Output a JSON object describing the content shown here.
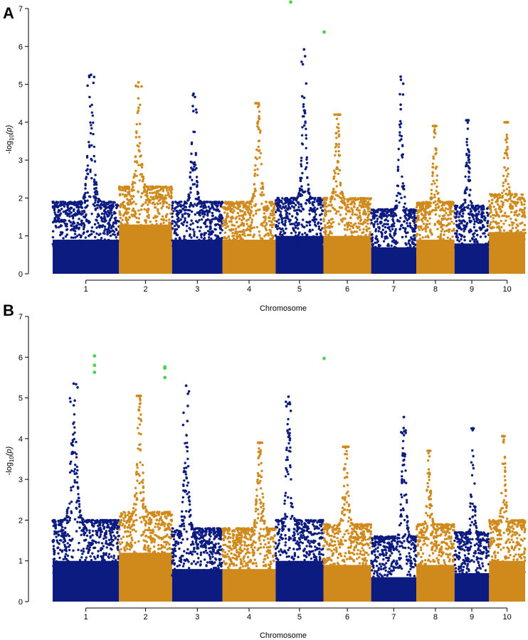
{
  "colors": {
    "navy": "#0b1b80",
    "orange": "#d08a1c",
    "significant": "#4cd24c"
  },
  "chart_data": [
    {
      "type": "scatter",
      "panel_label": "A",
      "xlabel": "Chromosome",
      "ylabel_main": "-log",
      "ylabel_sub": "10",
      "ylabel_tail": "(p)",
      "ylim": [
        0,
        7
      ],
      "y_ticks": [
        "0",
        "1",
        "2",
        "3",
        "4",
        "5",
        "6",
        "7"
      ],
      "chromosomes": [
        {
          "label": "1",
          "width": 1.25,
          "base": 1.9,
          "peak": 4.6,
          "top": 5.25,
          "color": "navy"
        },
        {
          "label": "2",
          "width": 1.0,
          "base": 2.3,
          "peak": 4.4,
          "top": 5.05,
          "color": "orange"
        },
        {
          "label": "3",
          "width": 0.95,
          "base": 1.9,
          "peak": 4.1,
          "top": 4.75,
          "color": "navy"
        },
        {
          "label": "4",
          "width": 1.0,
          "base": 1.9,
          "peak": 4.5,
          "top": 4.5,
          "color": "orange"
        },
        {
          "label": "5",
          "width": 0.9,
          "base": 2.0,
          "peak": 4.6,
          "top": 5.92,
          "color": "navy"
        },
        {
          "label": "6",
          "width": 0.9,
          "base": 2.0,
          "peak": 4.2,
          "top": 4.2,
          "color": "orange"
        },
        {
          "label": "7",
          "width": 0.85,
          "base": 1.7,
          "peak": 4.3,
          "top": 5.2,
          "color": "navy"
        },
        {
          "label": "8",
          "width": 0.72,
          "base": 1.9,
          "peak": 3.9,
          "top": 3.9,
          "color": "orange"
        },
        {
          "label": "9",
          "width": 0.65,
          "base": 1.8,
          "peak": 4.05,
          "top": 4.05,
          "color": "navy"
        },
        {
          "label": "10",
          "width": 0.68,
          "base": 2.1,
          "peak": 4.0,
          "top": 4.0,
          "color": "orange"
        }
      ],
      "significant_points": [
        {
          "chrom": "5",
          "pos": 0.3,
          "value": 7.17
        },
        {
          "chrom": "6",
          "pos": 0.0,
          "value": 6.38
        }
      ]
    },
    {
      "type": "scatter",
      "panel_label": "B",
      "xlabel": "Chromosome",
      "ylabel_main": "-log",
      "ylabel_sub": "10",
      "ylabel_tail": "(p)",
      "ylim": [
        0,
        7
      ],
      "y_ticks": [
        "0",
        "1",
        "2",
        "3",
        "4",
        "5",
        "6",
        "7"
      ],
      "chromosomes": [
        {
          "label": "1",
          "width": 1.25,
          "base": 2.0,
          "peak": 4.7,
          "top": 5.35,
          "color": "navy"
        },
        {
          "label": "2",
          "width": 1.0,
          "base": 2.2,
          "peak": 5.05,
          "top": 5.05,
          "color": "orange"
        },
        {
          "label": "3",
          "width": 0.95,
          "base": 1.8,
          "peak": 4.2,
          "top": 5.3,
          "color": "navy"
        },
        {
          "label": "4",
          "width": 1.0,
          "base": 1.8,
          "peak": 3.9,
          "top": 3.9,
          "color": "orange"
        },
        {
          "label": "5",
          "width": 0.9,
          "base": 2.0,
          "peak": 4.6,
          "top": 5.03,
          "color": "navy"
        },
        {
          "label": "6",
          "width": 0.9,
          "base": 1.9,
          "peak": 3.8,
          "top": 3.8,
          "color": "orange"
        },
        {
          "label": "7",
          "width": 0.85,
          "base": 1.6,
          "peak": 4.1,
          "top": 4.53,
          "color": "navy"
        },
        {
          "label": "8",
          "width": 0.72,
          "base": 1.9,
          "peak": 3.7,
          "top": 3.7,
          "color": "orange"
        },
        {
          "label": "9",
          "width": 0.65,
          "base": 1.7,
          "peak": 4.25,
          "top": 4.25,
          "color": "navy"
        },
        {
          "label": "10",
          "width": 0.68,
          "base": 2.0,
          "peak": 4.06,
          "top": 4.06,
          "color": "orange"
        }
      ],
      "significant_points": [
        {
          "chrom": "1",
          "pos": 0.62,
          "value": 6.03
        },
        {
          "chrom": "1",
          "pos": 0.62,
          "value": 5.8
        },
        {
          "chrom": "1",
          "pos": 0.62,
          "value": 5.63
        },
        {
          "chrom": "2",
          "pos": 0.85,
          "value": 5.76
        },
        {
          "chrom": "2",
          "pos": 0.85,
          "value": 5.73
        },
        {
          "chrom": "2",
          "pos": 0.85,
          "value": 5.5
        },
        {
          "chrom": "6",
          "pos": 0.0,
          "value": 5.97
        }
      ]
    }
  ]
}
